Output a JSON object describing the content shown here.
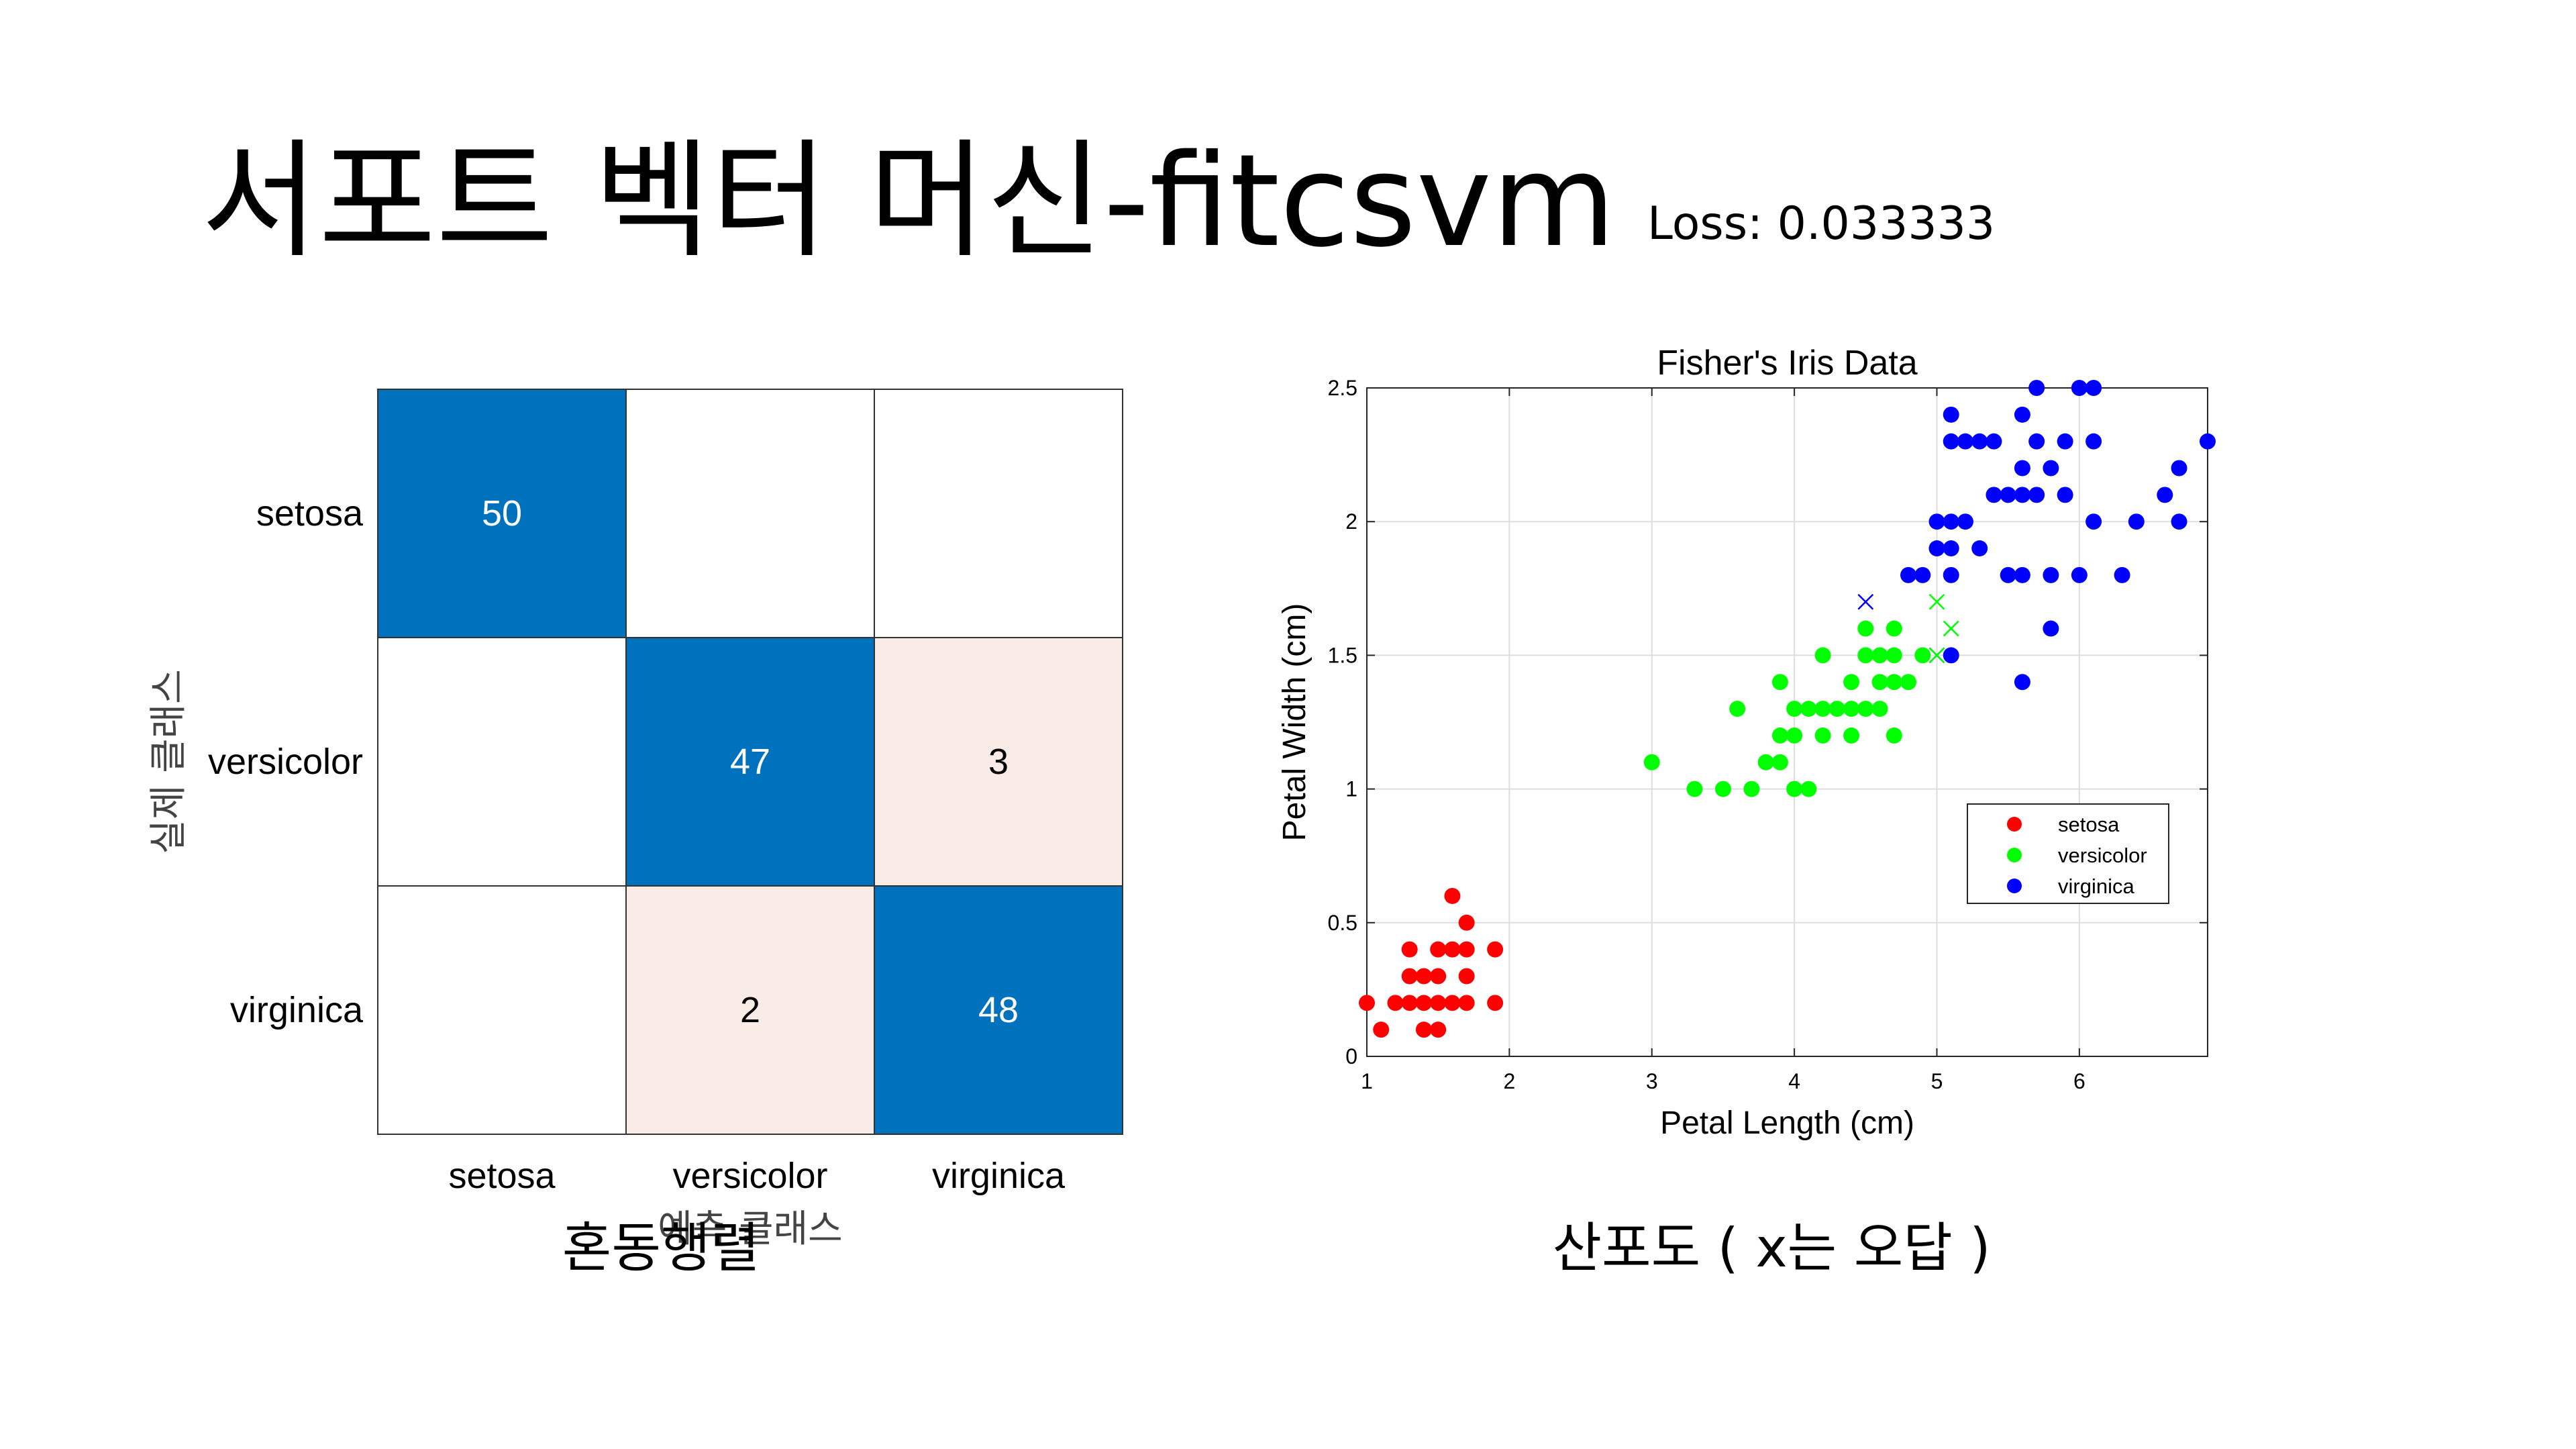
{
  "slide": {
    "title": "서포트 벡터 머신-fitcsvm",
    "loss_label": "Loss: 0.033333",
    "caption_left": "혼동행렬",
    "caption_right": "산포도 ( x는 오답 )"
  },
  "colors": {
    "cm_strong": "#0072BD",
    "cm_light": "#F9EBE5",
    "setosa": "#FF0000",
    "versicolor": "#00FF00",
    "virginica": "#0000FF"
  },
  "chart_data": [
    {
      "type": "heatmap",
      "kind": "confusion-matrix",
      "rows": [
        "setosa",
        "versicolor",
        "virginica"
      ],
      "columns": [
        "setosa",
        "versicolor",
        "virginica"
      ],
      "values": [
        [
          50,
          null,
          null
        ],
        [
          null,
          47,
          3
        ],
        [
          null,
          2,
          48
        ]
      ],
      "xlabel": "예측 클래스",
      "ylabel": "실제 클래스"
    },
    {
      "type": "scatter",
      "title": "Fisher's Iris Data",
      "xlabel": "Petal Length (cm)",
      "ylabel": "Petal Width (cm)",
      "xlim": [
        1,
        6.9
      ],
      "ylim": [
        0,
        2.5
      ],
      "xticks": [
        1,
        2,
        3,
        4,
        5,
        6
      ],
      "xtick_labels": [
        "1",
        "2",
        "3",
        "4",
        "5",
        "6"
      ],
      "yticks": [
        0,
        0.5,
        1,
        1.5,
        2,
        2.5
      ],
      "ytick_labels": [
        "0",
        "0.5",
        "1",
        "1.5",
        "2",
        "2.5"
      ],
      "grid": true,
      "legend_position": "lower-right",
      "series": [
        {
          "name": "setosa",
          "color": "#FF0000",
          "points": [
            [
              1.0,
              0.2
            ],
            [
              1.1,
              0.1
            ],
            [
              1.2,
              0.2
            ],
            [
              1.3,
              0.2
            ],
            [
              1.3,
              0.3
            ],
            [
              1.3,
              0.4
            ],
            [
              1.4,
              0.1
            ],
            [
              1.4,
              0.2
            ],
            [
              1.4,
              0.3
            ],
            [
              1.5,
              0.1
            ],
            [
              1.5,
              0.2
            ],
            [
              1.5,
              0.3
            ],
            [
              1.5,
              0.4
            ],
            [
              1.6,
              0.2
            ],
            [
              1.6,
              0.4
            ],
            [
              1.6,
              0.6
            ],
            [
              1.7,
              0.2
            ],
            [
              1.7,
              0.3
            ],
            [
              1.7,
              0.4
            ],
            [
              1.7,
              0.5
            ],
            [
              1.9,
              0.2
            ],
            [
              1.9,
              0.4
            ]
          ]
        },
        {
          "name": "versicolor",
          "color": "#00FF00",
          "points": [
            [
              3.0,
              1.1
            ],
            [
              3.3,
              1.0
            ],
            [
              3.5,
              1.0
            ],
            [
              3.6,
              1.3
            ],
            [
              3.7,
              1.0
            ],
            [
              3.8,
              1.1
            ],
            [
              3.9,
              1.1
            ],
            [
              3.9,
              1.2
            ],
            [
              3.9,
              1.4
            ],
            [
              4.0,
              1.0
            ],
            [
              4.0,
              1.2
            ],
            [
              4.0,
              1.3
            ],
            [
              4.1,
              1.0
            ],
            [
              4.1,
              1.3
            ],
            [
              4.2,
              1.2
            ],
            [
              4.2,
              1.3
            ],
            [
              4.2,
              1.5
            ],
            [
              4.3,
              1.3
            ],
            [
              4.4,
              1.2
            ],
            [
              4.4,
              1.3
            ],
            [
              4.4,
              1.4
            ],
            [
              4.5,
              1.3
            ],
            [
              4.5,
              1.5
            ],
            [
              4.5,
              1.6
            ],
            [
              4.6,
              1.3
            ],
            [
              4.6,
              1.4
            ],
            [
              4.6,
              1.5
            ],
            [
              4.7,
              1.2
            ],
            [
              4.7,
              1.4
            ],
            [
              4.7,
              1.5
            ],
            [
              4.7,
              1.6
            ],
            [
              4.8,
              1.4
            ],
            [
              4.9,
              1.5
            ]
          ]
        },
        {
          "name": "virginica",
          "color": "#0000FF",
          "points": [
            [
              4.8,
              1.8
            ],
            [
              4.9,
              1.8
            ],
            [
              5.0,
              1.9
            ],
            [
              5.0,
              2.0
            ],
            [
              5.1,
              1.5
            ],
            [
              5.1,
              1.8
            ],
            [
              5.1,
              1.9
            ],
            [
              5.1,
              2.0
            ],
            [
              5.1,
              2.3
            ],
            [
              5.1,
              2.4
            ],
            [
              5.2,
              2.0
            ],
            [
              5.2,
              2.3
            ],
            [
              5.3,
              1.9
            ],
            [
              5.3,
              2.3
            ],
            [
              5.4,
              2.1
            ],
            [
              5.4,
              2.3
            ],
            [
              5.5,
              1.8
            ],
            [
              5.5,
              2.1
            ],
            [
              5.6,
              1.4
            ],
            [
              5.6,
              1.8
            ],
            [
              5.6,
              2.1
            ],
            [
              5.6,
              2.2
            ],
            [
              5.6,
              2.4
            ],
            [
              5.7,
              2.1
            ],
            [
              5.7,
              2.3
            ],
            [
              5.7,
              2.5
            ],
            [
              5.8,
              1.6
            ],
            [
              5.8,
              1.8
            ],
            [
              5.8,
              2.2
            ],
            [
              5.9,
              2.1
            ],
            [
              5.9,
              2.3
            ],
            [
              6.0,
              1.8
            ],
            [
              6.0,
              2.5
            ],
            [
              6.1,
              2.0
            ],
            [
              6.1,
              2.3
            ],
            [
              6.1,
              2.5
            ],
            [
              6.3,
              1.8
            ],
            [
              6.4,
              2.0
            ],
            [
              6.6,
              2.1
            ],
            [
              6.7,
              2.0
            ],
            [
              6.7,
              2.2
            ],
            [
              6.9,
              2.3
            ]
          ]
        }
      ],
      "misclassified": [
        {
          "x": 4.5,
          "y": 1.7,
          "color": "#0000FF"
        },
        {
          "x": 5.0,
          "y": 1.5,
          "color": "#0000FF"
        },
        {
          "x": 5.0,
          "y": 1.7,
          "color": "#00FF00"
        },
        {
          "x": 5.1,
          "y": 1.6,
          "color": "#00FF00"
        },
        {
          "x": 5.0,
          "y": 1.5,
          "color": "#00FF00"
        }
      ]
    }
  ]
}
